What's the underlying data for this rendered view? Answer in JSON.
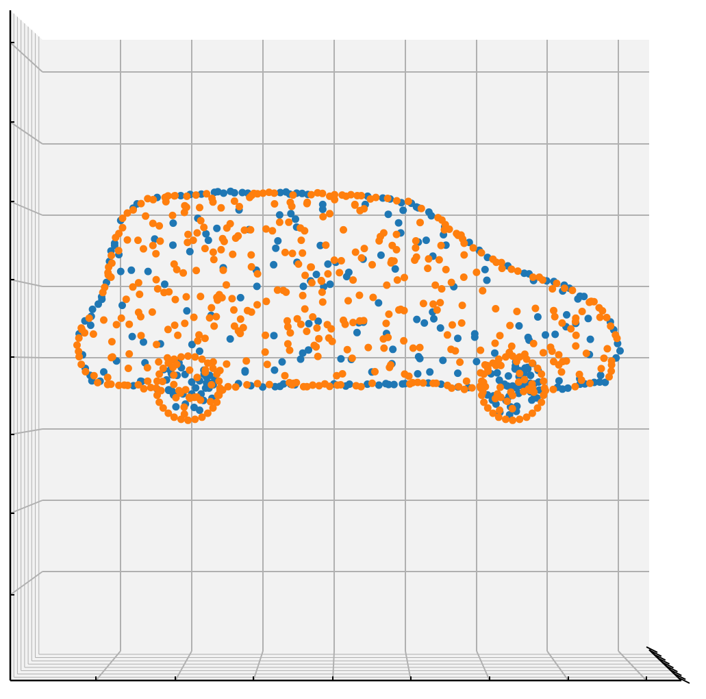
{
  "chart_data": {
    "type": "scatter",
    "projection": "3d",
    "view": "side",
    "grid": true,
    "title": "",
    "xlabel": "",
    "ylabel": "",
    "zlabel": "",
    "xlim": [
      -1,
      1
    ],
    "zlim": [
      -1,
      1
    ],
    "tick_labels_shown": false,
    "colors": {
      "pane": "#f2f2f2",
      "grid": "#b0b0b0",
      "axis": "#000000"
    },
    "series": [
      {
        "color": "#1f77b4",
        "points": []
      },
      {
        "color": "#ff7f0e",
        "points": []
      }
    ]
  }
}
